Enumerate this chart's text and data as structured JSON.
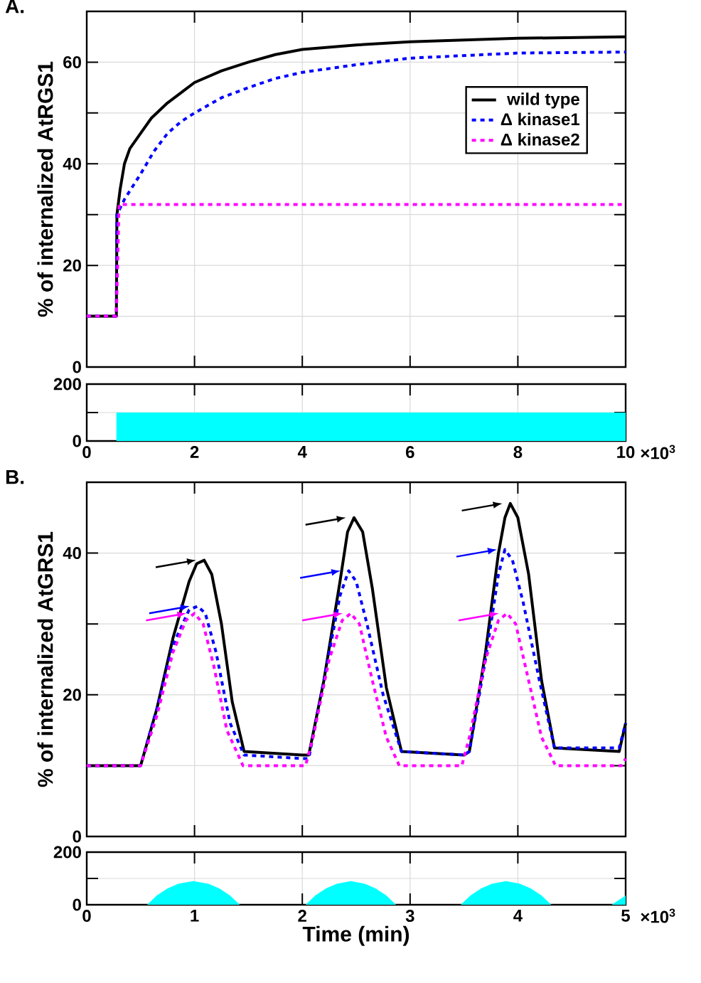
{
  "chart_data": [
    {
      "type": "line",
      "title": "A.",
      "ylabel": "% of internalized AtRGS1",
      "xlim": [
        0,
        10
      ],
      "xticks": [
        0,
        2,
        4,
        6,
        8,
        10
      ],
      "ylim": [
        0,
        70
      ],
      "yticks": [
        0,
        {
          "value": 10,
          "label": null
        },
        20,
        {
          "value": 30,
          "label": null
        },
        40,
        {
          "value": 50,
          "label": null
        },
        60
      ],
      "tick_labels": "y",
      "grid": true,
      "legend": "top right",
      "series": [
        {
          "name": "wild type",
          "color": "#000000",
          "line_style": "solid",
          "x": [
            0,
            0.55,
            0.56,
            0.62,
            0.7,
            0.8,
            1.0,
            1.2,
            1.5,
            1.75,
            2.0,
            2.5,
            3.0,
            3.5,
            4.0,
            5.0,
            6.0,
            8.0,
            10.0
          ],
          "values": [
            10,
            10,
            30,
            35,
            40,
            43,
            46,
            49,
            52,
            54,
            56,
            58.3,
            60,
            61.5,
            62.5,
            63.4,
            64,
            64.7,
            65
          ]
        },
        {
          "name": "Δ kinase1",
          "color": "#0000ff",
          "line_style": "dashed",
          "x": [
            0,
            0.55,
            0.56,
            0.7,
            0.85,
            1.0,
            1.25,
            1.5,
            1.75,
            2.0,
            2.5,
            3.0,
            3.5,
            4.0,
            5.0,
            6.0,
            8.0,
            10.0
          ],
          "values": [
            10,
            10,
            30,
            33,
            35.5,
            38,
            42.5,
            46,
            48.3,
            50,
            53,
            55,
            56.8,
            58,
            59.5,
            60.8,
            61.8,
            62
          ]
        },
        {
          "name": "Δ kinase2",
          "color": "#ff00ff",
          "line_style": "dashed",
          "x": [
            0,
            0.55,
            0.6,
            10
          ],
          "values": [
            10,
            10,
            32,
            32
          ]
        }
      ]
    },
    {
      "type": "area",
      "annotations": [
        "×10$^{3}$"
      ],
      "xlim": [
        0,
        10
      ],
      "xticks": [
        0,
        2,
        4,
        6,
        8,
        10
      ],
      "ylim": [
        0,
        200
      ],
      "yticks": [
        0,
        {
          "value": 100,
          "label": null
        },
        200
      ],
      "grid": true,
      "series": [
        {
          "color": "#00ffff",
          "x": [
            0,
            0.55,
            0.551,
            10
          ],
          "values": [
            0,
            0,
            100,
            100
          ]
        }
      ]
    },
    {
      "type": "line",
      "title": "B.",
      "ylabel": "% of internalized AtGRS1",
      "xlim": [
        0,
        5
      ],
      "xticks": [
        0,
        1,
        2,
        3,
        4,
        5
      ],
      "ylim": [
        0,
        50
      ],
      "yticks": [
        0,
        {
          "value": 10,
          "label": null
        },
        20,
        {
          "value": 30,
          "label": null
        },
        40
      ],
      "tick_labels": "y",
      "grid": true,
      "series": [
        {
          "color": "#000000",
          "line_style": "solid",
          "x": [
            0,
            0.5,
            0.65,
            0.8,
            0.95,
            1.02,
            1.09,
            1.16,
            1.25,
            1.35,
            1.46,
            2.0,
            2.06,
            2.2,
            2.35,
            2.42,
            2.48,
            2.56,
            2.65,
            2.78,
            2.92,
            3.5,
            3.55,
            3.7,
            3.82,
            3.88,
            3.93,
            4.0,
            4.1,
            4.22,
            4.34,
            4.94,
            5.0
          ],
          "values": [
            10,
            10,
            18,
            28,
            36,
            38.5,
            39,
            37,
            30,
            19,
            12,
            11.5,
            11.5,
            22,
            36,
            43,
            45,
            43,
            35,
            21,
            12,
            11.5,
            12,
            26,
            40,
            45,
            47,
            45,
            37,
            22,
            12.5,
            12,
            16
          ]
        },
        {
          "color": "#0000ff",
          "line_style": "dashed",
          "x": [
            0,
            0.5,
            0.65,
            0.8,
            0.95,
            1.03,
            1.1,
            1.2,
            1.33,
            1.46,
            2.0,
            2.06,
            2.2,
            2.35,
            2.43,
            2.5,
            2.6,
            2.75,
            2.92,
            3.5,
            3.55,
            3.7,
            3.82,
            3.88,
            3.95,
            4.05,
            4.2,
            4.34,
            4.94,
            5.0
          ],
          "values": [
            10,
            10,
            18,
            27,
            32,
            32.5,
            31.5,
            26,
            16,
            11.5,
            11,
            11,
            22,
            34,
            37.5,
            36,
            30,
            20,
            12,
            11.5,
            12,
            25,
            37,
            40.5,
            39,
            33,
            22,
            12.5,
            12.5,
            16
          ]
        },
        {
          "color": "#ff00ff",
          "line_style": "dashed",
          "x": [
            0,
            0.5,
            0.65,
            0.8,
            0.92,
            1.0,
            1.08,
            1.18,
            1.3,
            1.45,
            2.03,
            2.1,
            2.25,
            2.37,
            2.45,
            2.53,
            2.65,
            2.78,
            2.9,
            3.48,
            3.55,
            3.7,
            3.82,
            3.9,
            3.98,
            4.1,
            4.22,
            4.35,
            4.96,
            5.0
          ],
          "values": [
            10,
            10,
            17,
            26,
            30.5,
            31.5,
            30,
            24,
            15,
            10,
            10,
            14,
            25,
            30.5,
            31.5,
            30,
            22,
            14,
            10,
            10,
            14,
            25,
            30.5,
            31.5,
            30,
            22,
            14,
            10,
            10,
            11
          ]
        }
      ]
    },
    {
      "type": "area",
      "xlabel": "Time (min)",
      "annotations": [
        "×10$^{3}$"
      ],
      "xlim": [
        0,
        5
      ],
      "xticks": [
        0,
        1,
        2,
        3,
        4,
        5
      ],
      "ylim": [
        0,
        200
      ],
      "yticks": [
        0,
        {
          "value": 100,
          "label": null
        },
        200
      ],
      "grid": true,
      "series": [
        {
          "color": "#00ffff",
          "x": [
            0,
            0.56,
            0.65,
            0.75,
            0.85,
            0.99,
            1.13,
            1.23,
            1.33,
            1.42,
            2.03,
            2.12,
            2.22,
            2.32,
            2.45,
            2.58,
            2.68,
            2.78,
            2.87,
            3.47,
            3.56,
            3.66,
            3.76,
            3.89,
            4.02,
            4.12,
            4.22,
            4.31,
            4.87,
            5.0
          ],
          "values": [
            0,
            0,
            35,
            62,
            80,
            90,
            80,
            62,
            35,
            0,
            0,
            35,
            62,
            80,
            90,
            80,
            62,
            35,
            0,
            0,
            35,
            62,
            80,
            90,
            80,
            62,
            35,
            0,
            0,
            35
          ]
        }
      ]
    }
  ]
}
